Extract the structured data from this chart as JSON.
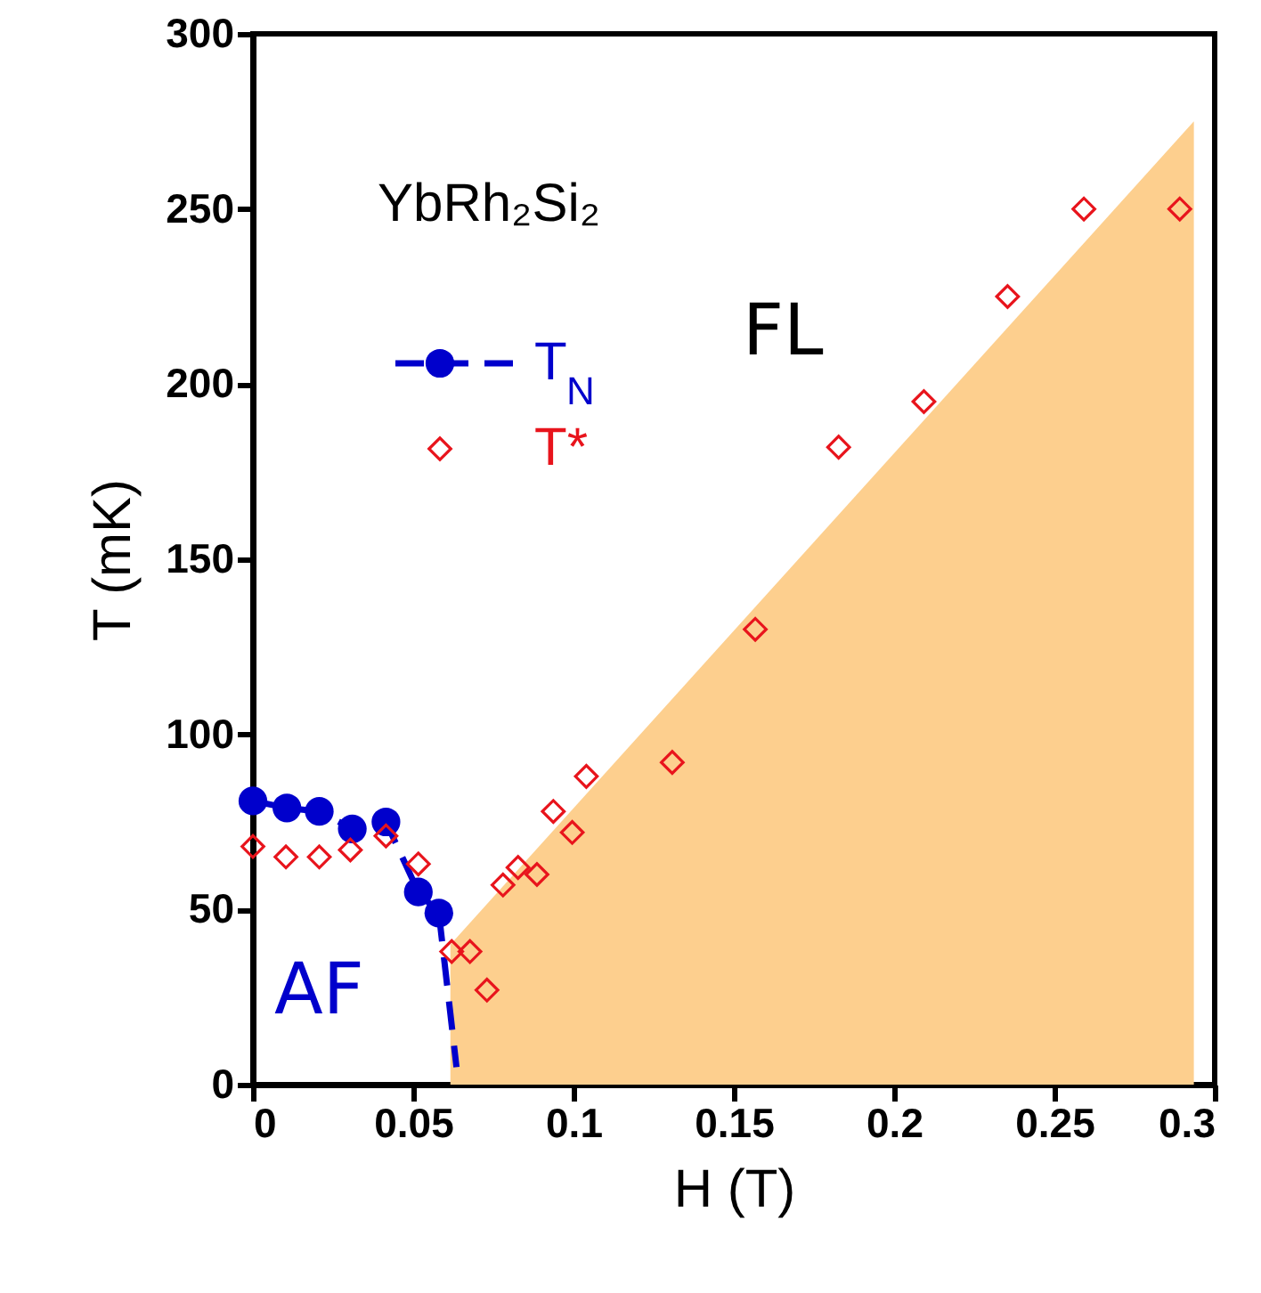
{
  "chart_data": {
    "type": "scatter",
    "xlabel": "H (T)",
    "ylabel": "T (mK)",
    "xlim": [
      0,
      0.3
    ],
    "ylim": [
      0,
      300
    ],
    "xticks": [
      0,
      0.05,
      0.1,
      0.15,
      0.2,
      0.25,
      0.3
    ],
    "yticks": [
      0,
      50,
      100,
      150,
      200,
      250,
      300
    ],
    "grid": false,
    "legend": "top left",
    "annotations": [
      "YbRh₂Si₂",
      "FL",
      "AF"
    ],
    "series": [
      {
        "type": "area",
        "color": "#fdcf8e",
        "x": [
          0.0616,
          0.2935
        ],
        "values": [
          40,
          275
        ]
      },
      {
        "type": "line",
        "name": "T$_{N}$",
        "color": "#0000cc",
        "marker": "circle",
        "line_style": "dashed",
        "x": [
          0,
          0.0106,
          0.0207,
          0.031,
          0.0415,
          0.0516,
          0.058
        ],
        "values": [
          81,
          79,
          78,
          73,
          75,
          55,
          49
        ]
      },
      {
        "type": "line",
        "color": "#0000cc",
        "marker": "none",
        "line_style": "dashed",
        "x": [
          0.058,
          0.0635
        ],
        "values": [
          49,
          5
        ]
      },
      {
        "type": "scatter",
        "name": "T*",
        "color": "#e8141c",
        "marker": "diamond",
        "x": [
          0,
          0.0103,
          0.0207,
          0.0304,
          0.0415,
          0.0516,
          0.062,
          0.0677,
          0.073,
          0.078,
          0.0827,
          0.0886,
          0.0937,
          0.0996,
          0.104,
          0.1308,
          0.1567,
          0.1827,
          0.2093,
          0.2354,
          0.2592,
          0.2891
        ],
        "values": [
          68,
          65,
          65,
          67,
          71,
          63,
          38,
          38,
          27,
          57,
          62,
          60,
          78,
          72,
          88,
          92,
          130,
          182,
          195,
          225,
          250,
          250
        ]
      }
    ]
  }
}
